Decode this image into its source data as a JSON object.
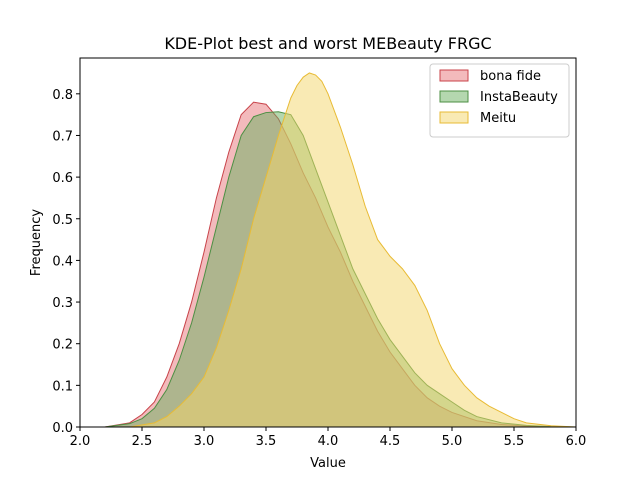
{
  "chart_data": {
    "type": "area",
    "title": "KDE-Plot best and worst MEBeauty FRGC",
    "xlabel": "Value",
    "ylabel": "Frequency",
    "xlim": [
      2.0,
      6.0
    ],
    "ylim": [
      0.0,
      0.886
    ],
    "xticks": [
      "2.0",
      "2.5",
      "3.0",
      "3.5",
      "4.0",
      "4.5",
      "5.0",
      "5.5",
      "6.0"
    ],
    "yticks": [
      "0.0",
      "0.1",
      "0.2",
      "0.3",
      "0.4",
      "0.5",
      "0.6",
      "0.7",
      "0.8"
    ],
    "legend_position": "top-right",
    "grid": false,
    "series": [
      {
        "name": "bona fide",
        "fill": "#e8767a",
        "stroke": "#c8434a",
        "x": [
          2.2,
          2.4,
          2.5,
          2.6,
          2.7,
          2.8,
          2.9,
          3.0,
          3.1,
          3.2,
          3.3,
          3.4,
          3.5,
          3.6,
          3.7,
          3.8,
          3.9,
          4.0,
          4.1,
          4.2,
          4.3,
          4.4,
          4.5,
          4.6,
          4.7,
          4.8,
          4.9,
          5.0,
          5.2,
          5.4,
          5.6,
          5.8,
          6.0
        ],
        "y": [
          0.0,
          0.01,
          0.03,
          0.06,
          0.12,
          0.2,
          0.3,
          0.42,
          0.55,
          0.66,
          0.75,
          0.78,
          0.775,
          0.74,
          0.68,
          0.61,
          0.55,
          0.48,
          0.42,
          0.35,
          0.29,
          0.23,
          0.18,
          0.14,
          0.1,
          0.07,
          0.05,
          0.035,
          0.015,
          0.006,
          0.002,
          0.0,
          0.0
        ]
      },
      {
        "name": "InstaBeauty",
        "fill": "#6aaf5f",
        "stroke": "#4c8f43",
        "x": [
          2.2,
          2.4,
          2.5,
          2.6,
          2.7,
          2.8,
          2.9,
          3.0,
          3.1,
          3.2,
          3.3,
          3.4,
          3.5,
          3.6,
          3.7,
          3.8,
          3.9,
          4.0,
          4.1,
          4.2,
          4.3,
          4.4,
          4.5,
          4.6,
          4.7,
          4.8,
          4.9,
          5.0,
          5.1,
          5.2,
          5.4,
          5.6,
          5.8,
          6.0
        ],
        "y": [
          0.0,
          0.008,
          0.02,
          0.045,
          0.09,
          0.16,
          0.25,
          0.36,
          0.48,
          0.6,
          0.7,
          0.745,
          0.755,
          0.757,
          0.75,
          0.7,
          0.62,
          0.54,
          0.46,
          0.38,
          0.32,
          0.26,
          0.21,
          0.17,
          0.13,
          0.1,
          0.08,
          0.06,
          0.04,
          0.025,
          0.01,
          0.004,
          0.001,
          0.0
        ]
      },
      {
        "name": "Meitu",
        "fill": "#f4d66a",
        "stroke": "#e8bb35",
        "x": [
          2.4,
          2.6,
          2.7,
          2.8,
          2.9,
          3.0,
          3.1,
          3.2,
          3.3,
          3.4,
          3.5,
          3.6,
          3.7,
          3.75,
          3.8,
          3.85,
          3.9,
          3.95,
          4.0,
          4.1,
          4.2,
          4.3,
          4.4,
          4.5,
          4.6,
          4.7,
          4.8,
          4.9,
          5.0,
          5.1,
          5.2,
          5.3,
          5.4,
          5.5,
          5.6,
          5.8,
          6.0
        ],
        "y": [
          0.0,
          0.01,
          0.025,
          0.05,
          0.08,
          0.12,
          0.19,
          0.28,
          0.38,
          0.5,
          0.6,
          0.7,
          0.79,
          0.82,
          0.84,
          0.85,
          0.845,
          0.83,
          0.8,
          0.72,
          0.63,
          0.53,
          0.45,
          0.41,
          0.38,
          0.34,
          0.28,
          0.2,
          0.14,
          0.1,
          0.07,
          0.05,
          0.035,
          0.02,
          0.01,
          0.003,
          0.0
        ]
      }
    ]
  }
}
